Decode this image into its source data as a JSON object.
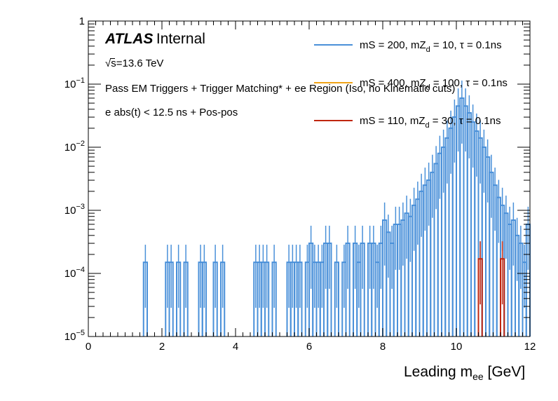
{
  "chart_data": {
    "type": "histogram",
    "experiment": "ATLAS",
    "label": "Internal",
    "energy": "s=13.6 TeV",
    "annotations": [
      "Pass EM Triggers + Trigger Matching* + ee Region (Iso, no Kinematic cuts)",
      "e abs(t) < 12.5 ns + Pos-pos"
    ],
    "xlabel": "Leading m",
    "xlabel_sub": "ee",
    "xlabel_unit": "[GeV]",
    "xlim": [
      0,
      12
    ],
    "ylim": [
      1e-05,
      1
    ],
    "yscale": "log",
    "xticks": [
      0,
      2,
      4,
      6,
      8,
      10,
      12
    ],
    "xtick_labels": [
      "0",
      "2",
      "4",
      "6",
      "8",
      "10",
      "12"
    ],
    "yticks": [
      1e-05,
      0.0001,
      0.001,
      0.01,
      0.1,
      1
    ],
    "ytick_labels": [
      {
        "base": "10",
        "exp": "−5"
      },
      {
        "base": "10",
        "exp": "−4"
      },
      {
        "base": "10",
        "exp": "−3"
      },
      {
        "base": "10",
        "exp": "−2"
      },
      {
        "base": "10",
        "exp": "−1"
      },
      {
        "base": "1",
        "exp": ""
      }
    ],
    "legend_position": "top-right",
    "series": [
      {
        "name": "mS = 200, mZd = 10, τ = 0.1ns",
        "legend_pre": "mS = 200, mZ",
        "legend_sub": "d",
        "legend_post": " = 10, τ = 0.1ns",
        "color": "#4a90d9",
        "points": [
          [
            1.5,
            0.00015
          ],
          [
            2.1,
            0.00015
          ],
          [
            2.2,
            0.00015
          ],
          [
            2.4,
            0.00015
          ],
          [
            2.6,
            0.00015
          ],
          [
            3.0,
            0.00015
          ],
          [
            3.1,
            0.00015
          ],
          [
            3.4,
            0.00015
          ],
          [
            3.6,
            0.00015
          ],
          [
            4.5,
            0.00015
          ],
          [
            4.6,
            0.00015
          ],
          [
            4.7,
            0.00015
          ],
          [
            4.8,
            0.00015
          ],
          [
            5.0,
            0.00015
          ],
          [
            5.4,
            0.00015
          ],
          [
            5.5,
            0.00015
          ],
          [
            5.6,
            0.00015
          ],
          [
            5.7,
            0.00015
          ],
          [
            5.9,
            0.00015
          ],
          [
            6.0,
            0.0003
          ],
          [
            6.1,
            0.00015
          ],
          [
            6.2,
            0.00015
          ],
          [
            6.3,
            0.00015
          ],
          [
            6.4,
            0.0003
          ],
          [
            6.5,
            0.0003
          ],
          [
            6.7,
            0.00015
          ],
          [
            6.9,
            0.00015
          ],
          [
            7.0,
            0.0003
          ],
          [
            7.2,
            0.0003
          ],
          [
            7.3,
            0.00015
          ],
          [
            7.4,
            0.0003
          ],
          [
            7.6,
            0.0003
          ],
          [
            7.7,
            0.0003
          ],
          [
            7.8,
            0.00015
          ],
          [
            7.9,
            0.0003
          ],
          [
            8.0,
            0.0007
          ],
          [
            8.1,
            0.00045
          ],
          [
            8.2,
            0.0003
          ],
          [
            8.3,
            0.0006
          ],
          [
            8.4,
            0.0006
          ],
          [
            8.5,
            0.0007
          ],
          [
            8.6,
            0.0009
          ],
          [
            8.7,
            0.0008
          ],
          [
            8.8,
            0.0012
          ],
          [
            8.9,
            0.0015
          ],
          [
            9.0,
            0.002
          ],
          [
            9.1,
            0.0025
          ],
          [
            9.2,
            0.003
          ],
          [
            9.3,
            0.004
          ],
          [
            9.4,
            0.0055
          ],
          [
            9.5,
            0.008
          ],
          [
            9.6,
            0.01
          ],
          [
            9.7,
            0.014
          ],
          [
            9.8,
            0.02
          ],
          [
            9.9,
            0.03
          ],
          [
            10.0,
            0.045
          ],
          [
            10.1,
            0.06
          ],
          [
            10.2,
            0.045
          ],
          [
            10.3,
            0.035
          ],
          [
            10.4,
            0.025
          ],
          [
            10.5,
            0.018
          ],
          [
            10.6,
            0.014
          ],
          [
            10.7,
            0.01
          ],
          [
            10.8,
            0.007
          ],
          [
            10.9,
            0.004
          ],
          [
            11.0,
            0.0025
          ],
          [
            11.1,
            0.0016
          ],
          [
            11.2,
            0.0012
          ],
          [
            11.3,
            0.0009
          ],
          [
            11.4,
            0.0006
          ],
          [
            11.5,
            0.0007
          ],
          [
            11.6,
            0.0004
          ],
          [
            11.7,
            0.0003
          ],
          [
            11.8,
            0.00015
          ],
          [
            11.9,
            0.0006
          ]
        ]
      },
      {
        "name": "mS = 400, mZd = 100, τ = 0.1ns",
        "legend_pre": "mS = 400, mZ",
        "legend_sub": "d",
        "legend_post": " = 100, τ = 0.1ns",
        "color": "#f0a418",
        "points": []
      },
      {
        "name": "mS = 110, mZd = 30, τ = 0.1ns",
        "legend_pre": "mS = 110, mZ",
        "legend_sub": "d",
        "legend_post": " = 30, τ = 0.1ns",
        "color": "#c0260f",
        "points": [
          [
            10.6,
            0.00017
          ],
          [
            11.2,
            0.00017
          ]
        ]
      }
    ]
  }
}
